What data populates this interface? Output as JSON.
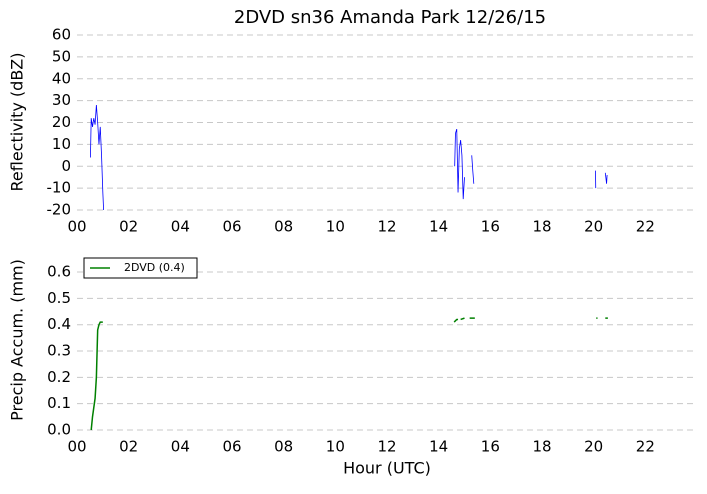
{
  "chart_data": [
    {
      "type": "line",
      "title": "2DVD sn36 Amanda Park 12/26/15",
      "y_label": "Reflectivity (dBZ)",
      "xlim": [
        0,
        24
      ],
      "xticks": [
        {
          "value": 0,
          "label": "00"
        },
        {
          "value": 2,
          "label": "02"
        },
        {
          "value": 4,
          "label": "04"
        },
        {
          "value": 6,
          "label": "06"
        },
        {
          "value": 8,
          "label": "08"
        },
        {
          "value": 10,
          "label": "10"
        },
        {
          "value": 12,
          "label": "12"
        },
        {
          "value": 14,
          "label": "14"
        },
        {
          "value": 16,
          "label": "16"
        },
        {
          "value": 18,
          "label": "18"
        },
        {
          "value": 20,
          "label": "20"
        },
        {
          "value": 22,
          "label": "22"
        }
      ],
      "ylim": [
        -20,
        60
      ],
      "yticks": [
        -20,
        -10,
        0,
        10,
        20,
        30,
        40,
        50,
        60
      ],
      "grid": true,
      "series": [
        {
          "color": "#0000ff",
          "x": [
            0.52,
            0.55,
            0.6,
            0.65,
            0.7,
            0.75,
            0.8,
            0.85,
            0.9,
            0.95,
            1.0,
            1.03,
            null,
            14.62,
            14.65,
            14.7,
            14.75,
            14.8,
            14.85,
            14.9,
            14.95,
            15.0,
            null,
            15.28,
            15.32,
            15.36,
            null,
            20.07,
            20.08,
            null,
            20.45,
            20.48,
            20.5,
            20.52
          ],
          "values": [
            4,
            22,
            18,
            22,
            19,
            28,
            20,
            10,
            18,
            5,
            -12,
            -20,
            null,
            0,
            15,
            17,
            -12,
            8,
            12,
            5,
            -15,
            -5,
            null,
            5,
            -2,
            -8,
            null,
            -2,
            -10,
            null,
            -3,
            -6,
            -8,
            -4
          ]
        }
      ]
    },
    {
      "type": "line",
      "x_label": "Hour (UTC)",
      "y_label": "Precip Accum. (mm)",
      "xlim": [
        0,
        24
      ],
      "xticks": [
        {
          "value": 0,
          "label": "00"
        },
        {
          "value": 2,
          "label": "02"
        },
        {
          "value": 4,
          "label": "04"
        },
        {
          "value": 6,
          "label": "06"
        },
        {
          "value": 8,
          "label": "08"
        },
        {
          "value": 10,
          "label": "10"
        },
        {
          "value": 12,
          "label": "12"
        },
        {
          "value": 14,
          "label": "14"
        },
        {
          "value": 16,
          "label": "16"
        },
        {
          "value": 18,
          "label": "18"
        },
        {
          "value": 20,
          "label": "20"
        },
        {
          "value": 22,
          "label": "22"
        }
      ],
      "ylim": [
        0,
        0.68
      ],
      "yticks": [
        {
          "value": 0,
          "label": "0.0"
        },
        0.1,
        0.2,
        0.3,
        0.4,
        0.5,
        0.6
      ],
      "grid": true,
      "legend": "upper left",
      "series": [
        {
          "name": "2DVD (0.4)",
          "color": "#008000",
          "x": [
            0.55,
            0.6,
            0.7,
            0.75,
            0.8,
            0.85,
            0.9,
            1.0,
            null,
            14.6,
            14.7,
            14.75,
            null,
            14.85,
            15.0,
            null,
            15.2,
            15.4,
            null,
            20.1,
            20.15,
            null,
            20.45,
            20.55
          ],
          "values": [
            0,
            0.05,
            0.12,
            0.2,
            0.38,
            0.4,
            0.41,
            0.41,
            null,
            0.41,
            0.42,
            0.42,
            null,
            0.42,
            0.425,
            null,
            0.425,
            0.425,
            null,
            0.425,
            0.425,
            null,
            0.425,
            0.425
          ]
        }
      ]
    }
  ]
}
